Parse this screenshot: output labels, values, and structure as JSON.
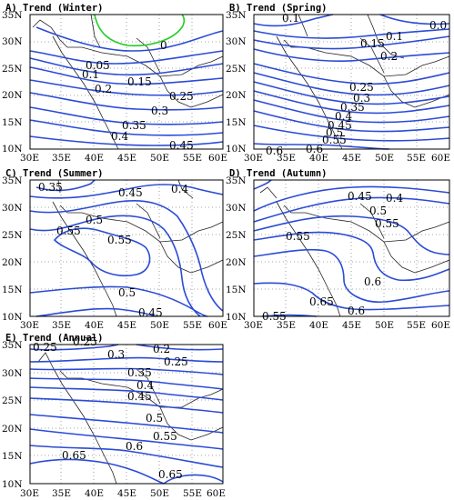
{
  "colors": {
    "contour": "#2b4bd6",
    "zero_contour": "#22cc22",
    "coast": "#222222",
    "grid": "#888888"
  },
  "axes": {
    "lon_labels": [
      "30E",
      "35E",
      "40E",
      "45E",
      "50E",
      "55E",
      "60E"
    ],
    "lat_labels": [
      "35N",
      "30N",
      "25N",
      "20N",
      "15N",
      "10N"
    ]
  },
  "panels": [
    {
      "title": "A) Trend (Winter)",
      "labels": [
        "0",
        "0.05",
        "0.1",
        "0.15",
        "0.2",
        "0.25",
        "0.3",
        "0.35",
        "0.4",
        "0.45"
      ]
    },
    {
      "title": "B) Trend (Spring)",
      "labels": [
        "0.1",
        "0.0",
        "0.1",
        "0.15",
        "0.2",
        "0.25",
        "0.3",
        "0.35",
        "0.4",
        "0.45",
        "0.5",
        "0.55",
        "0.6",
        "0.6"
      ]
    },
    {
      "title": "C) Trend (Summer)",
      "labels": [
        "0.35",
        "0.45",
        "0.4",
        "0.5",
        "0.55",
        "0.55",
        "0.5",
        "0.45"
      ]
    },
    {
      "title": "D) Trend (Autumn)",
      "labels": [
        "0.45",
        "0.4",
        "0.5",
        "0.55",
        "0.55",
        "0.6",
        "0.65",
        "0.6",
        "0.55"
      ]
    },
    {
      "title": "E) Trend (Annual)",
      "labels": [
        "0.25",
        "0.25",
        "0.2",
        "0.3",
        "0.25",
        "0.35",
        "0.4",
        "0.45",
        "0.5",
        "0.55",
        "0.6",
        "0.65",
        "0.65"
      ]
    }
  ]
}
